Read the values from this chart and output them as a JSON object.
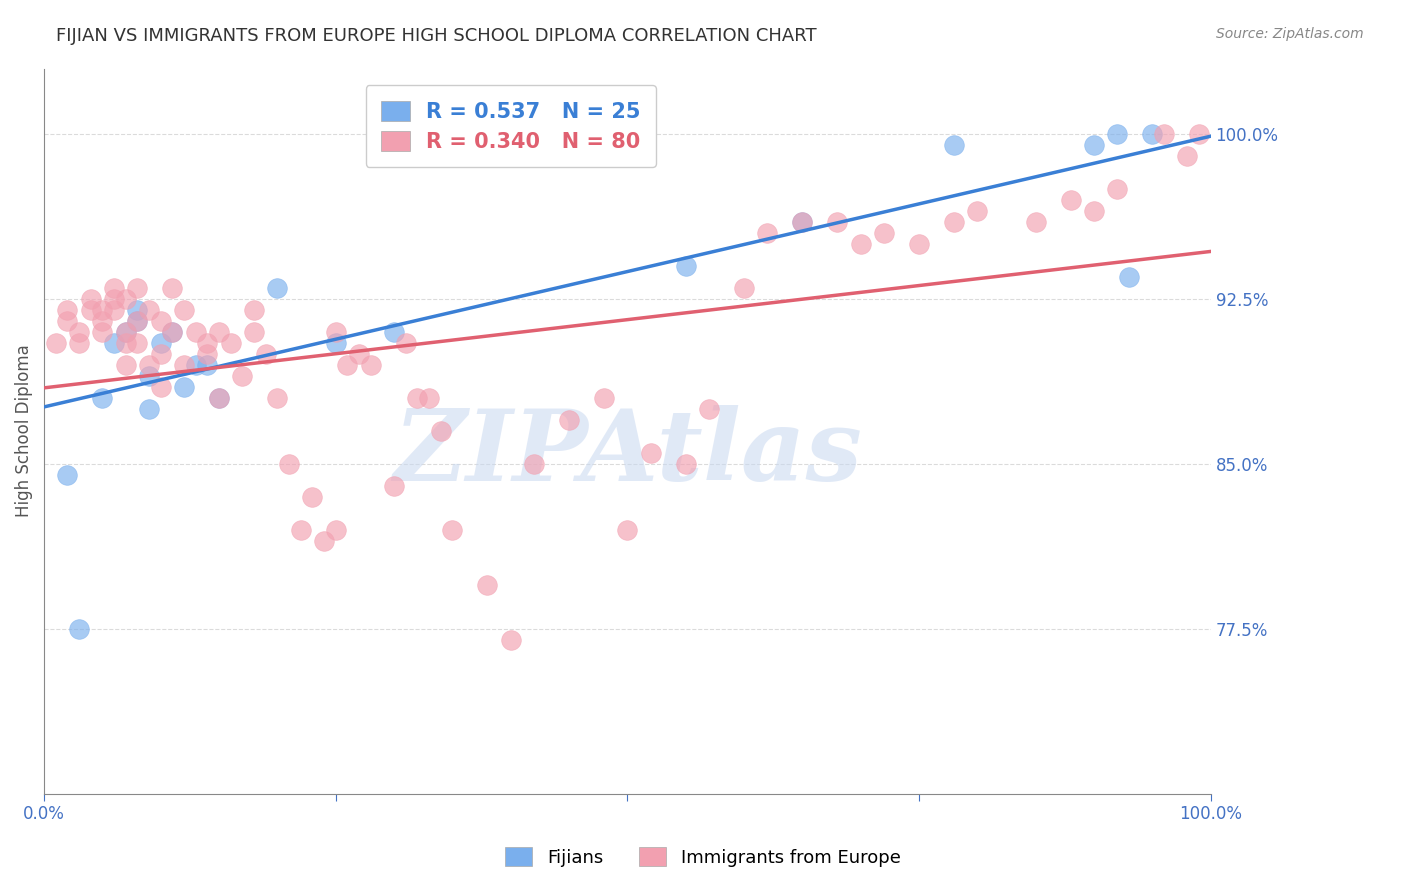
{
  "title": "FIJIAN VS IMMIGRANTS FROM EUROPE HIGH SCHOOL DIPLOMA CORRELATION CHART",
  "source": "Source: ZipAtlas.com",
  "ylabel": "High School Diploma",
  "xlim": [
    0.0,
    1.0
  ],
  "ylim": [
    0.7,
    1.03
  ],
  "yticks": [
    0.775,
    0.85,
    0.925,
    1.0
  ],
  "ytick_labels": [
    "77.5%",
    "85.0%",
    "92.5%",
    "100.0%"
  ],
  "fijian_color": "#7aafed",
  "europe_color": "#f2a0b0",
  "fijian_line_color": "#3a7fd5",
  "europe_line_color": "#e06070",
  "fijian_R": 0.537,
  "fijian_N": 25,
  "europe_R": 0.34,
  "europe_N": 80,
  "legend_label_fijian": "Fijians",
  "legend_label_europe": "Immigrants from Europe",
  "watermark_text": "ZIPAtlas",
  "watermark_color": "#c8d8f0",
  "title_color": "#333333",
  "axis_label_color": "#555555",
  "tick_color": "#4472c4",
  "grid_color": "#cccccc",
  "fijian_x": [
    0.02,
    0.03,
    0.05,
    0.06,
    0.07,
    0.08,
    0.08,
    0.09,
    0.09,
    0.1,
    0.11,
    0.12,
    0.13,
    0.14,
    0.15,
    0.2,
    0.25,
    0.3,
    0.55,
    0.65,
    0.78,
    0.9,
    0.92,
    0.93,
    0.95
  ],
  "fijian_y": [
    0.845,
    0.775,
    0.88,
    0.905,
    0.91,
    0.915,
    0.92,
    0.875,
    0.89,
    0.905,
    0.91,
    0.885,
    0.895,
    0.895,
    0.88,
    0.93,
    0.905,
    0.91,
    0.94,
    0.96,
    0.995,
    0.995,
    1.0,
    0.935,
    1.0
  ],
  "europe_x": [
    0.01,
    0.02,
    0.02,
    0.03,
    0.03,
    0.04,
    0.04,
    0.05,
    0.05,
    0.05,
    0.06,
    0.06,
    0.06,
    0.07,
    0.07,
    0.07,
    0.07,
    0.08,
    0.08,
    0.08,
    0.09,
    0.09,
    0.1,
    0.1,
    0.1,
    0.11,
    0.11,
    0.12,
    0.12,
    0.13,
    0.14,
    0.14,
    0.15,
    0.15,
    0.16,
    0.17,
    0.18,
    0.18,
    0.19,
    0.2,
    0.21,
    0.22,
    0.23,
    0.24,
    0.25,
    0.25,
    0.26,
    0.27,
    0.28,
    0.3,
    0.31,
    0.32,
    0.33,
    0.34,
    0.35,
    0.38,
    0.4,
    0.42,
    0.45,
    0.48,
    0.5,
    0.52,
    0.55,
    0.57,
    0.6,
    0.62,
    0.65,
    0.68,
    0.7,
    0.72,
    0.75,
    0.78,
    0.8,
    0.85,
    0.88,
    0.9,
    0.92,
    0.96,
    0.98,
    0.99
  ],
  "europe_y": [
    0.905,
    0.915,
    0.92,
    0.905,
    0.91,
    0.92,
    0.925,
    0.91,
    0.915,
    0.92,
    0.92,
    0.925,
    0.93,
    0.895,
    0.905,
    0.91,
    0.925,
    0.905,
    0.915,
    0.93,
    0.895,
    0.92,
    0.885,
    0.9,
    0.915,
    0.91,
    0.93,
    0.895,
    0.92,
    0.91,
    0.9,
    0.905,
    0.88,
    0.91,
    0.905,
    0.89,
    0.92,
    0.91,
    0.9,
    0.88,
    0.85,
    0.82,
    0.835,
    0.815,
    0.82,
    0.91,
    0.895,
    0.9,
    0.895,
    0.84,
    0.905,
    0.88,
    0.88,
    0.865,
    0.82,
    0.795,
    0.77,
    0.85,
    0.87,
    0.88,
    0.82,
    0.855,
    0.85,
    0.875,
    0.93,
    0.955,
    0.96,
    0.96,
    0.95,
    0.955,
    0.95,
    0.96,
    0.965,
    0.96,
    0.97,
    0.965,
    0.975,
    1.0,
    0.99,
    1.0
  ]
}
